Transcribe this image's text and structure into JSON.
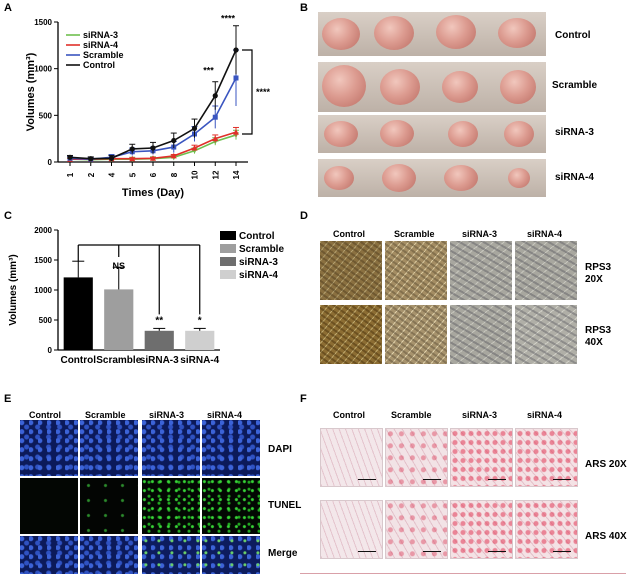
{
  "panels": {
    "A": "A",
    "B": "B",
    "C": "C",
    "D": "D",
    "E": "E",
    "F": "F"
  },
  "chart_data": [
    {
      "type": "line",
      "panel": "A",
      "xlabel": "Times (Day)",
      "ylabel": "Volumes (mm³)",
      "x": [
        "1",
        "2",
        "4",
        "5",
        "6",
        "8",
        "10",
        "12",
        "14"
      ],
      "ylim": [
        0,
        1500
      ],
      "yticks": [
        0,
        500,
        1000,
        1500
      ],
      "series": [
        {
          "name": "siRNA-3",
          "color": "#6fbf4f",
          "marker": "triangle-down",
          "values": [
            30,
            25,
            30,
            30,
            35,
            50,
            120,
            220,
            290
          ],
          "errors": [
            10,
            10,
            10,
            10,
            10,
            15,
            30,
            40,
            50
          ]
        },
        {
          "name": "siRNA-4",
          "color": "#e0302a",
          "marker": "triangle-up",
          "values": [
            30,
            30,
            35,
            35,
            40,
            65,
            150,
            250,
            320
          ],
          "errors": [
            10,
            10,
            10,
            10,
            10,
            15,
            30,
            40,
            50
          ]
        },
        {
          "name": "Scramble",
          "color": "#3a55c0",
          "marker": "square",
          "values": [
            40,
            30,
            50,
            110,
            120,
            160,
            300,
            480,
            900
          ],
          "errors": [
            20,
            20,
            30,
            40,
            40,
            60,
            80,
            120,
            300
          ]
        },
        {
          "name": "Control",
          "color": "#111111",
          "marker": "circle",
          "values": [
            50,
            35,
            40,
            140,
            150,
            230,
            360,
            710,
            1200
          ],
          "errors": [
            20,
            20,
            30,
            50,
            60,
            80,
            100,
            150,
            260
          ]
        }
      ],
      "annotations": [
        "***",
        "****",
        "****"
      ]
    },
    {
      "type": "bar",
      "panel": "C",
      "ylabel": "Volumes (mm³)",
      "categories": [
        "Control",
        "Scramble",
        "siRNA-3",
        "siRNA-4"
      ],
      "values": [
        1210,
        1010,
        320,
        320
      ],
      "errors": [
        270,
        370,
        40,
        40
      ],
      "colors": [
        "#000000",
        "#9e9e9e",
        "#6e6e6e",
        "#cfcfcf"
      ],
      "ylim": [
        0,
        2000
      ],
      "yticks": [
        0,
        500,
        1000,
        1500,
        2000
      ],
      "significance": [
        "",
        "NS",
        "**",
        "*"
      ]
    }
  ],
  "legendA": [
    "siRNA-3",
    "siRNA-4",
    "Scramble",
    "Control"
  ],
  "legendC": [
    "Control",
    "Scramble",
    "siRNA-3",
    "siRNA-4"
  ],
  "panelB": {
    "rows": [
      "Control",
      "Scramble",
      "siRNA-3",
      "siRNA-4"
    ]
  },
  "panelD": {
    "cols": [
      "Control",
      "Scramble",
      "siRNA-3",
      "siRNA-4"
    ],
    "rows": [
      {
        "l1": "RPS3",
        "l2": "20X"
      },
      {
        "l1": "RPS3",
        "l2": "40X"
      }
    ]
  },
  "panelE": {
    "cols": [
      "Control",
      "Scramble",
      "siRNA-3",
      "siRNA-4"
    ],
    "rows": [
      "DAPI",
      "TUNEL",
      "Merge"
    ]
  },
  "panelF": {
    "cols": [
      "Control",
      "Scramble",
      "siRNA-3",
      "siRNA-4"
    ],
    "rows": [
      "ARS 20X",
      "ARS 40X"
    ]
  }
}
